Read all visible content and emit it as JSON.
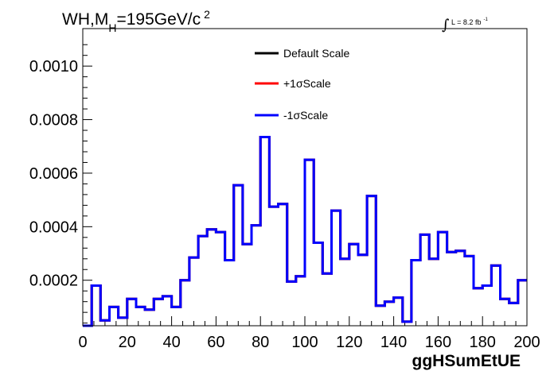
{
  "chart_data": {
    "type": "histogram-step",
    "title": {
      "prefix": "WH,M",
      "subscript": "H",
      "suffix": "=195GeV/c",
      "superscript": "2"
    },
    "lumi": {
      "integral": "∫",
      "text": "L = 8.2 fb",
      "superscript": "-1"
    },
    "xlabel": "ggHSumEtUE",
    "ylabel": "",
    "xlim": [
      0,
      200
    ],
    "ylim": [
      3e-05,
      0.00114
    ],
    "xticks": [
      "0",
      "20",
      "40",
      "60",
      "80",
      "100",
      "120",
      "140",
      "160",
      "180",
      "200"
    ],
    "yticks": [
      "0.0002",
      "0.0004",
      "0.0006",
      "0.0008",
      "0.0010"
    ],
    "grid": false,
    "legend_position": "top-center",
    "bin_edges": [
      0,
      4,
      8,
      12,
      16,
      20,
      24,
      28,
      32,
      36,
      40,
      44,
      48,
      52,
      56,
      60,
      64,
      68,
      72,
      76,
      80,
      84,
      88,
      92,
      96,
      100,
      104,
      108,
      112,
      116,
      120,
      124,
      128,
      132,
      136,
      140,
      144,
      148,
      152,
      156,
      160,
      164,
      168,
      172,
      176,
      180,
      184,
      188,
      192,
      196,
      200
    ],
    "series": [
      {
        "name": "Default Scale",
        "color": "#000000",
        "values": [
          3e-05,
          0.00018,
          5e-05,
          0.0001,
          6e-05,
          0.00013,
          0.0001,
          9e-05,
          0.00013,
          0.00014,
          0.0001,
          0.0002,
          0.000285,
          0.000365,
          0.00039,
          0.00038,
          0.000275,
          0.000555,
          0.000335,
          0.000405,
          0.000735,
          0.000475,
          0.000485,
          0.000195,
          0.000215,
          0.00065,
          0.00034,
          0.000225,
          0.00046,
          0.00028,
          0.000335,
          0.000295,
          0.000515,
          0.000105,
          0.00012,
          0.000135,
          4.5e-05,
          0.000275,
          0.00037,
          0.00028,
          0.00038,
          0.000305,
          0.00031,
          0.00029,
          0.00017,
          0.00018,
          0.000255,
          0.00013,
          0.000115,
          0.0002
        ]
      },
      {
        "name": "+1σScale",
        "color": "#ff0000",
        "values": [
          3e-05,
          0.00018,
          5e-05,
          0.0001,
          6e-05,
          0.00013,
          0.0001,
          9e-05,
          0.00013,
          0.00014,
          0.0001,
          0.0002,
          0.000285,
          0.000365,
          0.00039,
          0.00038,
          0.000275,
          0.000555,
          0.000335,
          0.000405,
          0.000735,
          0.000475,
          0.000485,
          0.000195,
          0.000215,
          0.00065,
          0.00034,
          0.000225,
          0.00046,
          0.00028,
          0.000335,
          0.000295,
          0.000515,
          0.000105,
          0.00012,
          0.000135,
          4.5e-05,
          0.000275,
          0.00037,
          0.00028,
          0.00038,
          0.000305,
          0.00031,
          0.00029,
          0.00017,
          0.00018,
          0.000255,
          0.00013,
          0.000115,
          0.0002
        ]
      },
      {
        "name": "-1σScale",
        "color": "#0000ff",
        "values": [
          3e-05,
          0.00018,
          5e-05,
          0.0001,
          6e-05,
          0.00013,
          0.0001,
          9e-05,
          0.00013,
          0.00014,
          0.0001,
          0.0002,
          0.000285,
          0.000365,
          0.00039,
          0.00038,
          0.000275,
          0.000555,
          0.000335,
          0.000405,
          0.000735,
          0.000475,
          0.000485,
          0.000195,
          0.000215,
          0.00065,
          0.00034,
          0.000225,
          0.00046,
          0.00028,
          0.000335,
          0.000295,
          0.000515,
          0.000105,
          0.00012,
          0.000135,
          4.5e-05,
          0.000275,
          0.00037,
          0.00028,
          0.00038,
          0.000305,
          0.00031,
          0.00029,
          0.00017,
          0.00018,
          0.000255,
          0.00013,
          0.000115,
          0.0002
        ]
      }
    ]
  }
}
